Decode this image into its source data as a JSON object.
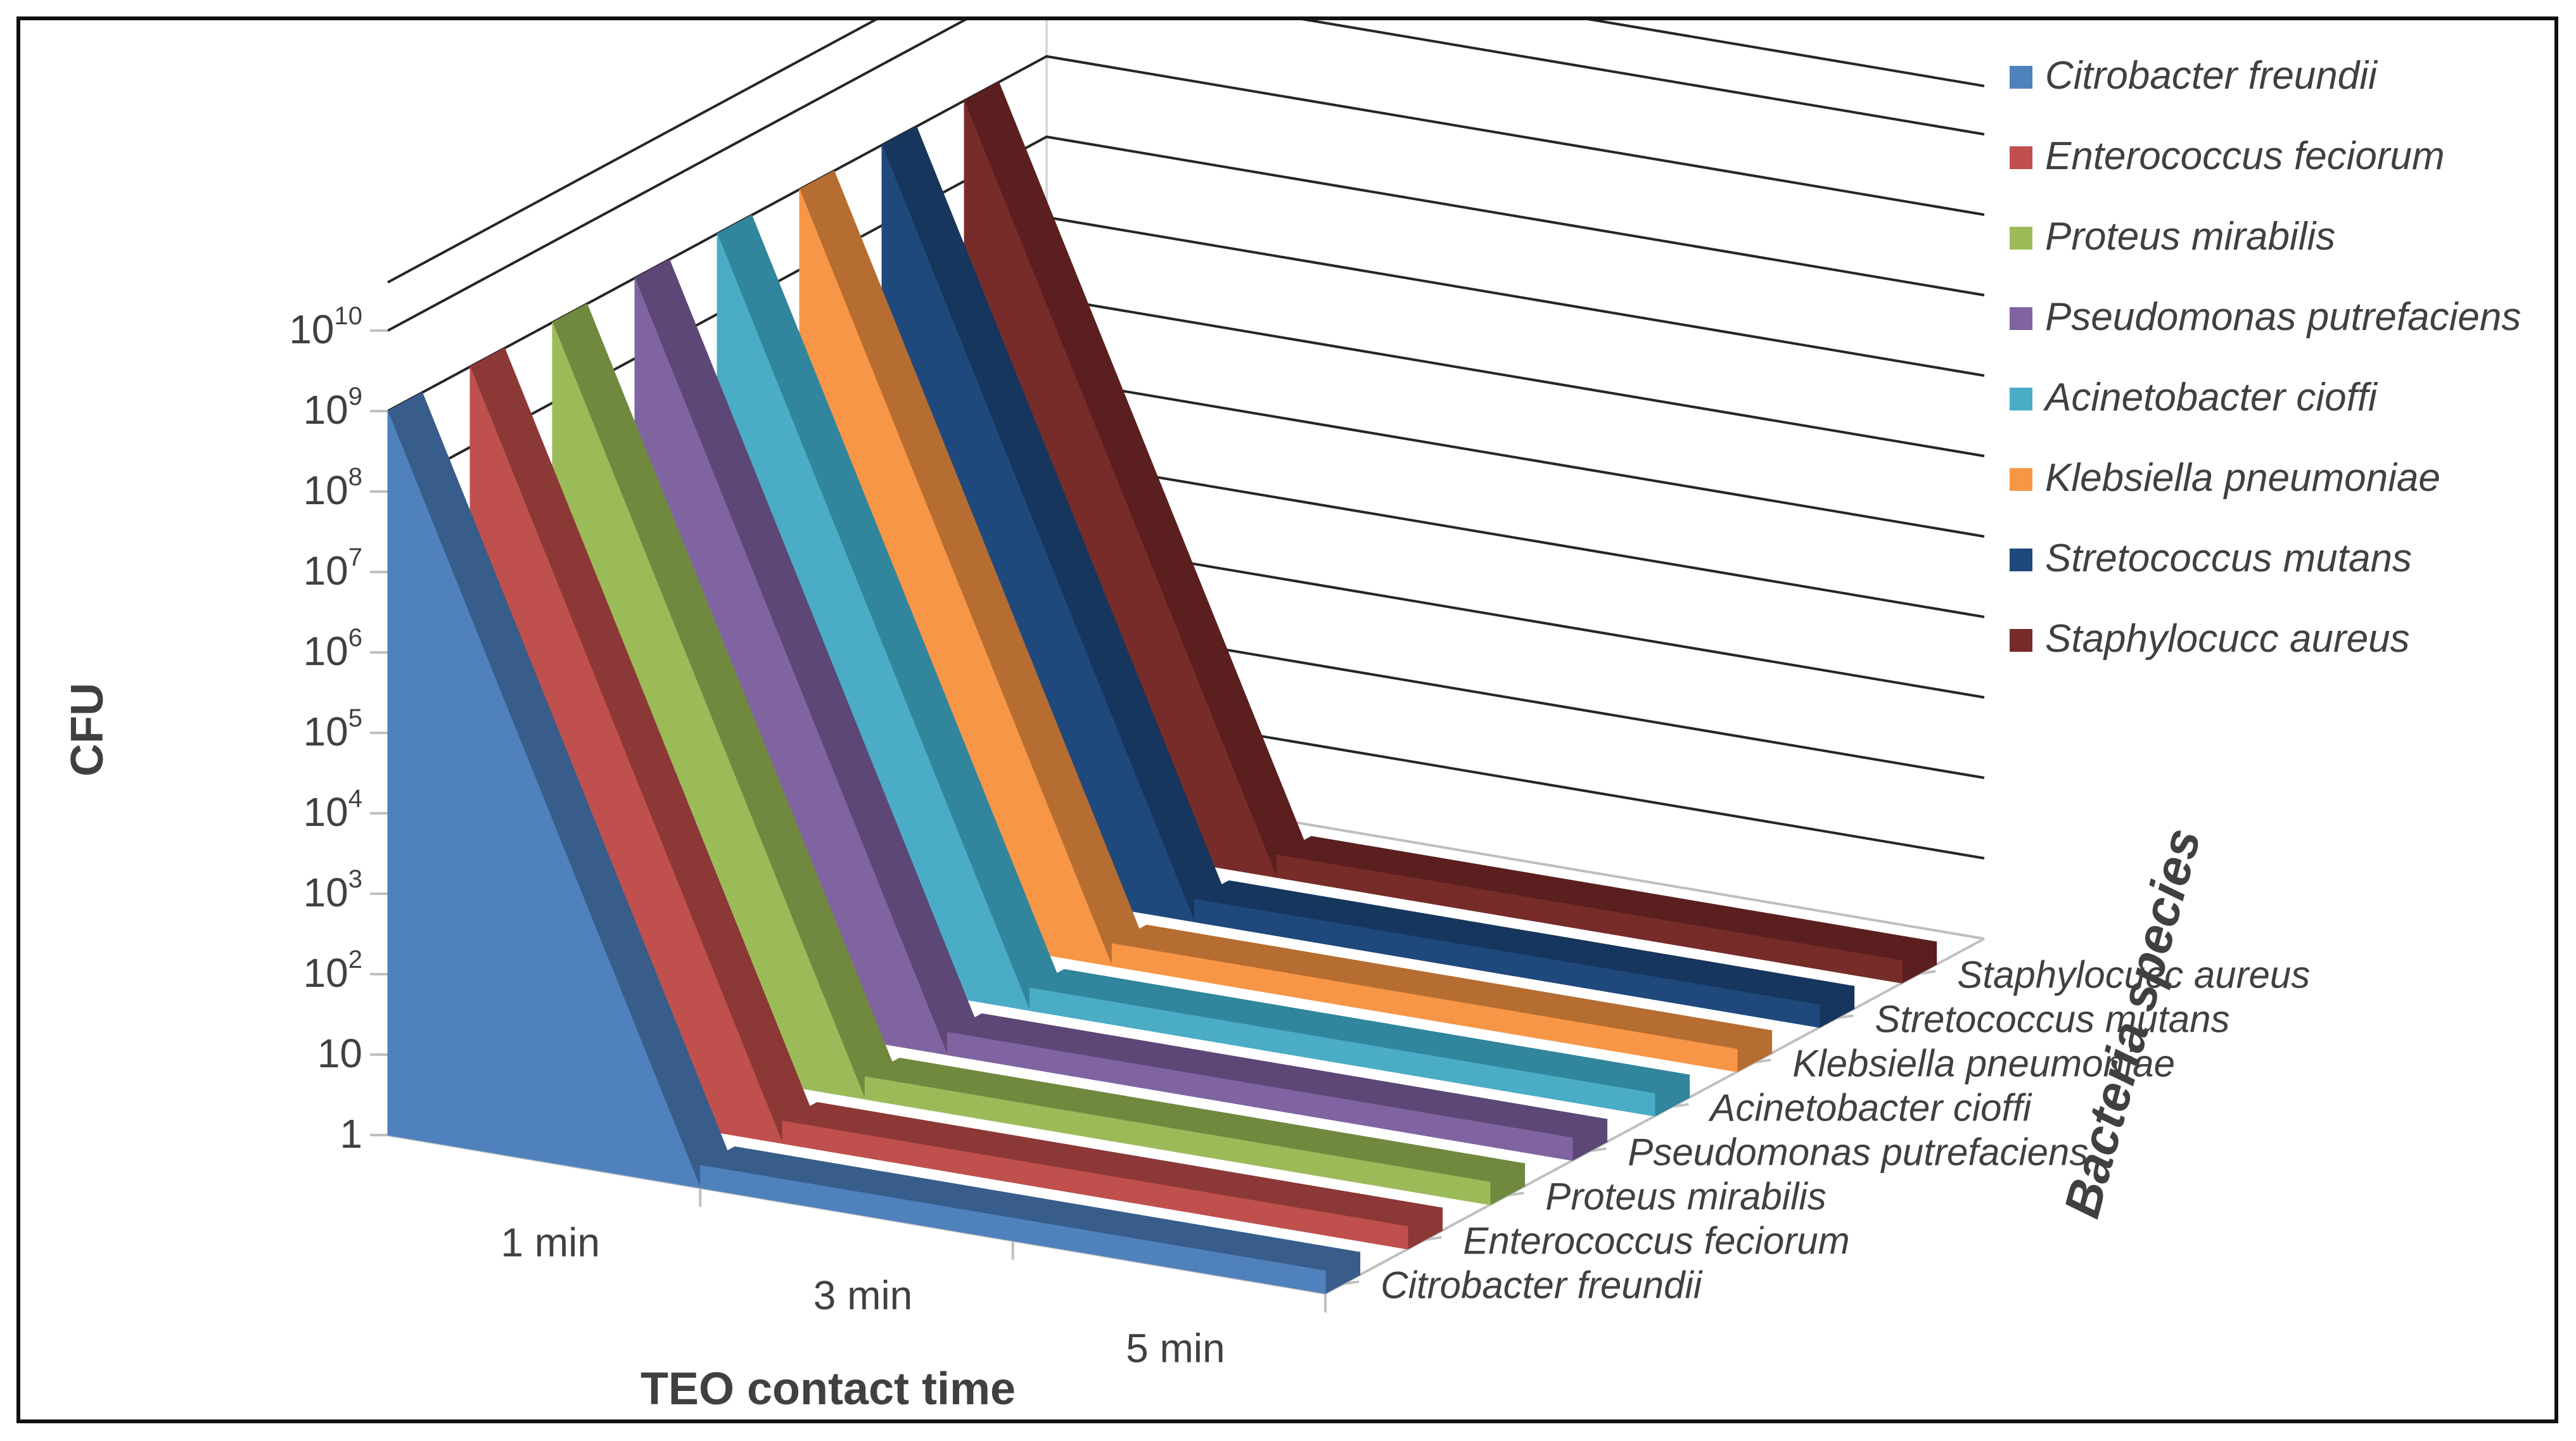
{
  "chart_data": {
    "type": "bar",
    "subtype": "3d-area",
    "title": "",
    "xlabel": "TEO contact time",
    "ylabel": "CFU",
    "zlabel": "Bacteria species",
    "y_scale": "log",
    "ylim": [
      1,
      10000000000
    ],
    "y_ticks": [
      {
        "base": "1",
        "exp": ""
      },
      {
        "base": "10",
        "exp": ""
      },
      {
        "base": "10",
        "exp": "2"
      },
      {
        "base": "10",
        "exp": "3"
      },
      {
        "base": "10",
        "exp": "4"
      },
      {
        "base": "10",
        "exp": "5"
      },
      {
        "base": "10",
        "exp": "6"
      },
      {
        "base": "10",
        "exp": "7"
      },
      {
        "base": "10",
        "exp": "8"
      },
      {
        "base": "10",
        "exp": "9"
      },
      {
        "base": "10",
        "exp": "10"
      }
    ],
    "categories": [
      "1 min",
      "3 min",
      "5 min"
    ],
    "series": [
      {
        "name": "Citrobacter freundii",
        "color": "#4F81BD",
        "dark": "#385D8A",
        "values": [
          1000000000,
          1,
          1
        ]
      },
      {
        "name": "Enterococcus feciorum",
        "color": "#C0504D",
        "dark": "#8C3836",
        "values": [
          1000000000,
          1,
          1
        ]
      },
      {
        "name": "Proteus mirabilis",
        "color": "#9BBB59",
        "dark": "#71893F",
        "values": [
          1000000000,
          1,
          1
        ]
      },
      {
        "name": "Pseudomonas putrefaciens",
        "color": "#8064A2",
        "dark": "#5C4776",
        "values": [
          1000000000,
          1,
          1
        ]
      },
      {
        "name": "Acinetobacter cioffi",
        "color": "#4BACC6",
        "dark": "#31859C",
        "values": [
          1000000000,
          1,
          1
        ]
      },
      {
        "name": "Klebsiella  pneumoniae",
        "color": "#F79646",
        "dark": "#B66D31",
        "values": [
          1000000000,
          1,
          1
        ]
      },
      {
        "name": "Stretococcus mutans",
        "color": "#1F497D",
        "dark": "#17365D",
        "values": [
          1000000000,
          1,
          1
        ]
      },
      {
        "name": "Staphylocucc aureus",
        "color": "#772C2A",
        "dark": "#5A1F1E",
        "values": [
          1000000000,
          1,
          1
        ]
      }
    ],
    "legend_position": "right"
  }
}
